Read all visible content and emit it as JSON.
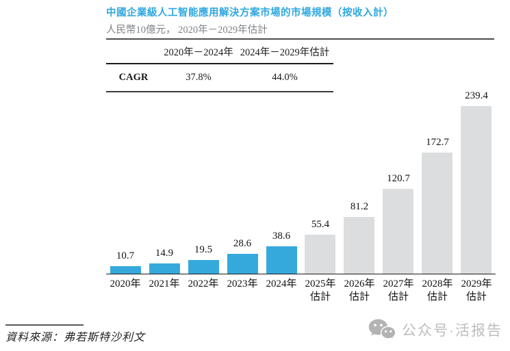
{
  "page": {
    "title": "中國企業級人工智能應用解決方案市場的市場規模（按收入計）",
    "subtitle": "人民幣10億元， 2020年－2029年估計"
  },
  "colors": {
    "title_blue": "#2EA7E0",
    "bar_actual_blue": "#36A9DC",
    "bar_estimate_gray": "#DCDDDE",
    "subtitle_gray": "#7E8184",
    "watermark_gray": "#BDBDBD"
  },
  "cagr_table": {
    "row_label": "CAGR",
    "columns": [
      {
        "period": "2020年－2024年",
        "value": "37.8%"
      },
      {
        "period": "2024年－2029年估計",
        "value": "44.0%"
      }
    ]
  },
  "chart_data": {
    "type": "bar",
    "title": "中國企業級人工智能應用解決方案市場的市場規模（按收入計）",
    "unit_label": "人民幣10億元",
    "categories": [
      "2020年",
      "2021年",
      "2022年",
      "2023年",
      "2024年",
      "2025年\n估計",
      "2026年\n估計",
      "2027年\n估計",
      "2028年\n估計",
      "2029年\n估計"
    ],
    "values": [
      10.7,
      14.9,
      19.5,
      28.6,
      38.6,
      55.4,
      81.2,
      120.7,
      172.7,
      239.4
    ],
    "estimate_flags": [
      false,
      false,
      false,
      false,
      false,
      true,
      true,
      true,
      true,
      true
    ],
    "value_labels": [
      "10.7",
      "14.9",
      "19.5",
      "28.6",
      "38.6",
      "55.4",
      "81.2",
      "120.7",
      "172.7",
      "239.4"
    ],
    "ylim": [
      0,
      250
    ],
    "grid": "off",
    "legend": "none",
    "bar_colors": {
      "actual": "#36A9DC",
      "estimate": "#DCDDDE"
    }
  },
  "footer": {
    "source": "資料來源：弗若斯特沙利文",
    "watermark": "公众号·活报告",
    "watermark_icon": "wechat-icon"
  }
}
